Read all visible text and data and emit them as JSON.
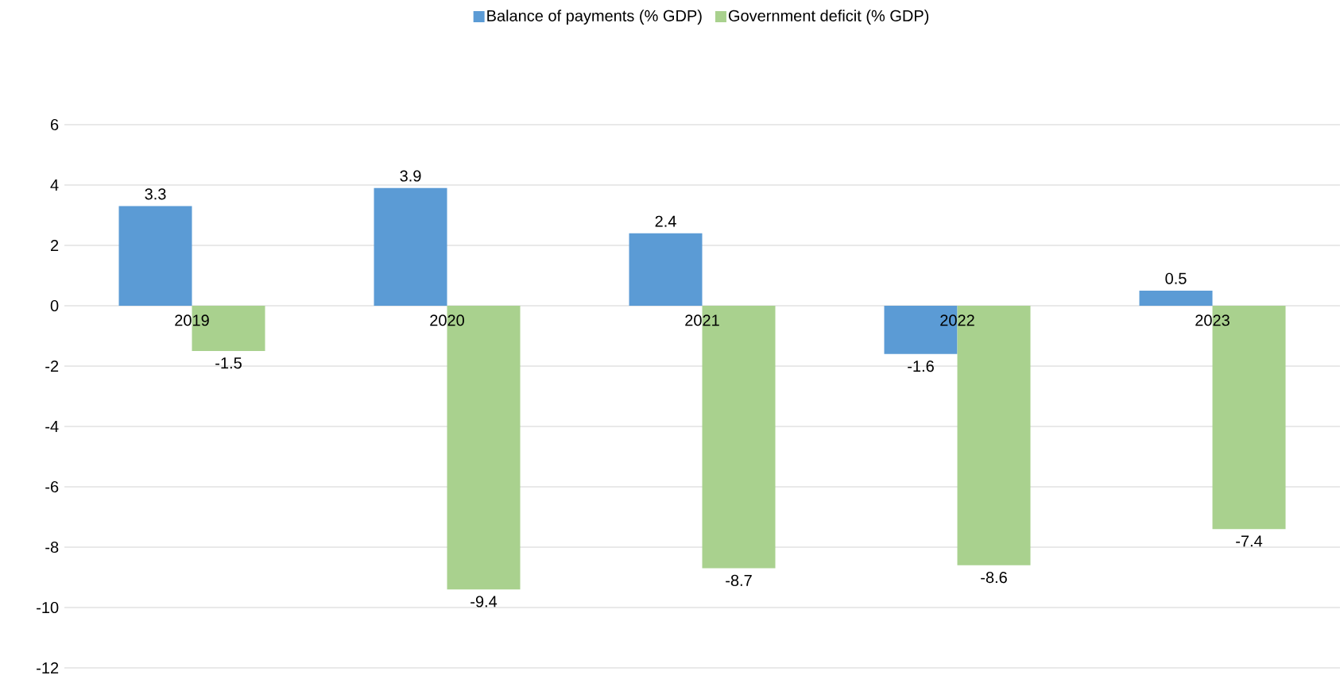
{
  "chart_data": {
    "type": "bar",
    "categories": [
      "2019",
      "2020",
      "2021",
      "2022",
      "2023"
    ],
    "series": [
      {
        "name": "Balance of payments (% GDP)",
        "color": "#5b9bd5",
        "values": [
          3.3,
          3.9,
          2.4,
          -1.6,
          0.5
        ]
      },
      {
        "name": "Government deficit (% GDP)",
        "color": "#a9d18e",
        "values": [
          -1.5,
          -9.4,
          -8.7,
          -8.6,
          -7.4
        ]
      }
    ],
    "ylim": [
      -12,
      6
    ],
    "yticks": [
      -12,
      -10,
      -8,
      -6,
      -4,
      -2,
      0,
      2,
      4,
      6
    ],
    "grid": "y",
    "legend": "top",
    "data_labels": true
  }
}
